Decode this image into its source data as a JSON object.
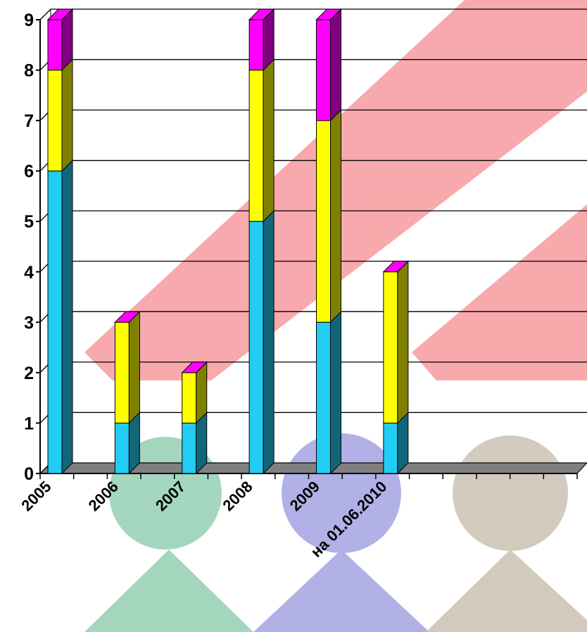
{
  "chart_data": {
    "type": "bar3d_stacked",
    "categories": [
      "2005",
      "2006",
      "2007",
      "2008",
      "2009",
      "на 01.06.2010",
      null,
      null
    ],
    "series": [
      {
        "color": "#22ccf2",
        "values": [
          6,
          1,
          1,
          5,
          3,
          1,
          null,
          null
        ]
      },
      {
        "color": "#ffff00",
        "values": [
          2,
          2,
          1,
          3,
          4,
          3,
          null,
          null
        ]
      },
      {
        "color": "#ff00ff",
        "values": [
          1,
          0,
          0,
          1,
          2,
          0,
          null,
          null
        ]
      }
    ],
    "ylim": [
      0,
      9
    ],
    "yticks": [
      0,
      1,
      2,
      3,
      4,
      5,
      6,
      7,
      8,
      9
    ],
    "grid": true
  }
}
